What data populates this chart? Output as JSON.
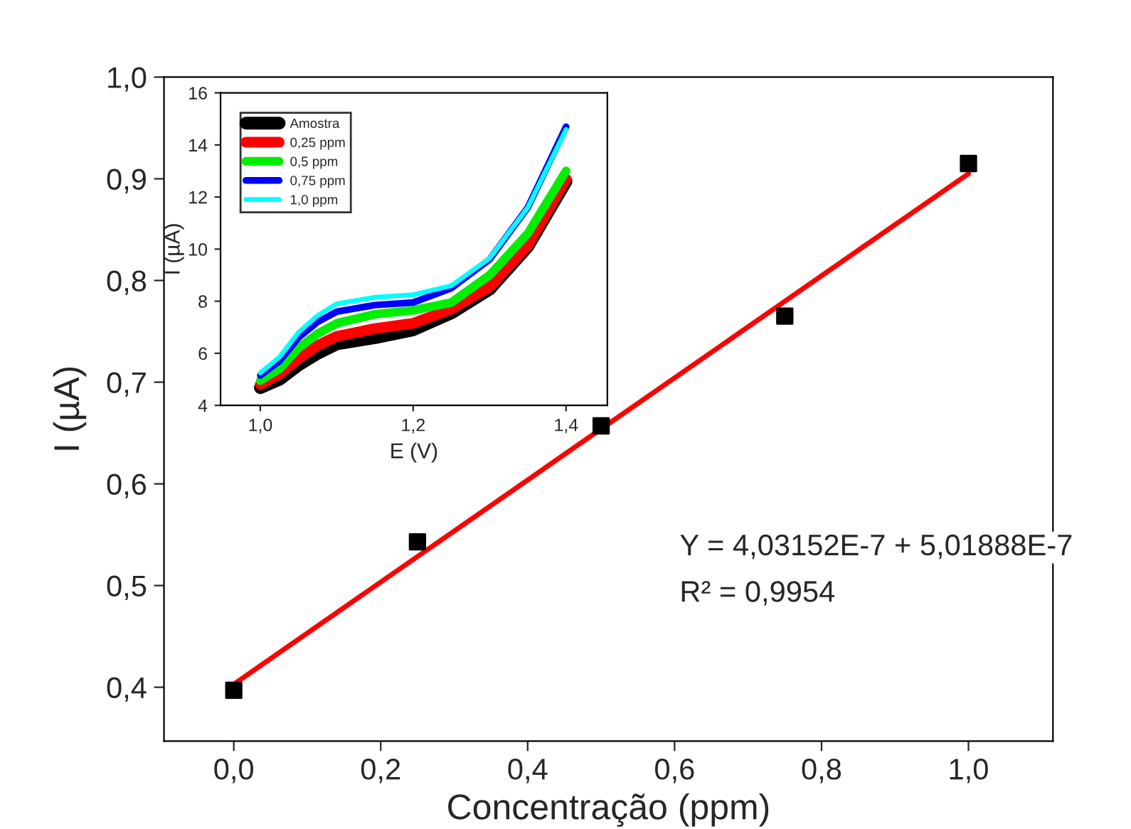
{
  "chart_data": [
    {
      "type": "scatter",
      "xlabel": "Concentração (ppm)",
      "ylabel": "I (µA)",
      "xlim": [
        -0.095,
        1.115
      ],
      "ylim": [
        0.347,
        1.0
      ],
      "xticks": [
        {
          "value": 0,
          "label": "0,0"
        },
        {
          "value": 0.2,
          "label": "0,2"
        },
        {
          "value": 0.4,
          "label": "0,4"
        },
        {
          "value": 0.6,
          "label": "0,6"
        },
        {
          "value": 0.8,
          "label": "0,8"
        },
        {
          "value": 1.0,
          "label": "1,0"
        }
      ],
      "yticks": [
        {
          "value": 0.4,
          "label": "0,4"
        },
        {
          "value": 0.5,
          "label": "0,5"
        },
        {
          "value": 0.6,
          "label": "0,6"
        },
        {
          "value": 0.7,
          "label": "0,7"
        },
        {
          "value": 0.8,
          "label": "0,8"
        },
        {
          "value": 0.9,
          "label": "0,9"
        },
        {
          "value": 1.0,
          "label": "1,0"
        }
      ],
      "grid": false,
      "legend": false,
      "annotations": [
        "Y = 4,03152E-7 + 5,01888E-7",
        "R² = 0,9954"
      ],
      "series": [
        {
          "type": "scatter",
          "marker": "square",
          "color": "#000000",
          "x": [
            0,
            0.25,
            0.5,
            0.75,
            1.0
          ],
          "values": [
            0.397,
            0.543,
            0.657,
            0.765,
            0.915
          ]
        },
        {
          "type": "line",
          "marker": "none",
          "color": "#ff0000",
          "x": [
            0,
            1.0
          ],
          "values": [
            0.403,
            0.905
          ]
        }
      ]
    },
    {
      "type": "line",
      "xlabel": "E (V)",
      "ylabel": "I (µA)",
      "xlim": [
        0.948,
        1.454
      ],
      "ylim": [
        4,
        16
      ],
      "xticks": [
        {
          "value": 1.0,
          "label": "1,0"
        },
        {
          "value": 1.2,
          "label": "1,2"
        },
        {
          "value": 1.4,
          "label": "1,4"
        }
      ],
      "yticks": [
        4,
        6,
        8,
        10,
        12,
        14,
        16
      ],
      "grid": false,
      "legend": "top left",
      "marker": "none",
      "line_style": "solid",
      "x": [
        1.0,
        1.025,
        1.05,
        1.075,
        1.1,
        1.15,
        1.2,
        1.25,
        1.3,
        1.35,
        1.4
      ],
      "series": [
        {
          "name": "Amostra",
          "color": "#000000",
          "values": [
            4.68,
            5.0,
            5.55,
            6.0,
            6.36,
            6.6,
            6.9,
            7.55,
            8.46,
            10.1,
            12.6
          ]
        },
        {
          "name": "0,25 ppm",
          "color": "#ff0000",
          "values": [
            4.8,
            5.2,
            5.8,
            6.3,
            6.65,
            6.95,
            7.15,
            7.7,
            8.55,
            10.15,
            12.7
          ]
        },
        {
          "name": "0,5 ppm",
          "color": "#00ee00",
          "values": [
            4.95,
            5.4,
            6.2,
            6.75,
            7.15,
            7.5,
            7.65,
            7.95,
            9.0,
            10.6,
            13.0
          ]
        },
        {
          "name": "0,75 ppm",
          "color": "#0000ff",
          "values": [
            5.15,
            5.7,
            6.6,
            7.2,
            7.6,
            7.85,
            7.95,
            8.5,
            9.6,
            11.6,
            14.7
          ]
        },
        {
          "name": "1,0 ppm",
          "color": "#00ffff",
          "values": [
            5.25,
            5.85,
            6.8,
            7.45,
            7.9,
            8.15,
            8.25,
            8.6,
            9.65,
            11.6,
            14.6
          ]
        }
      ]
    }
  ]
}
